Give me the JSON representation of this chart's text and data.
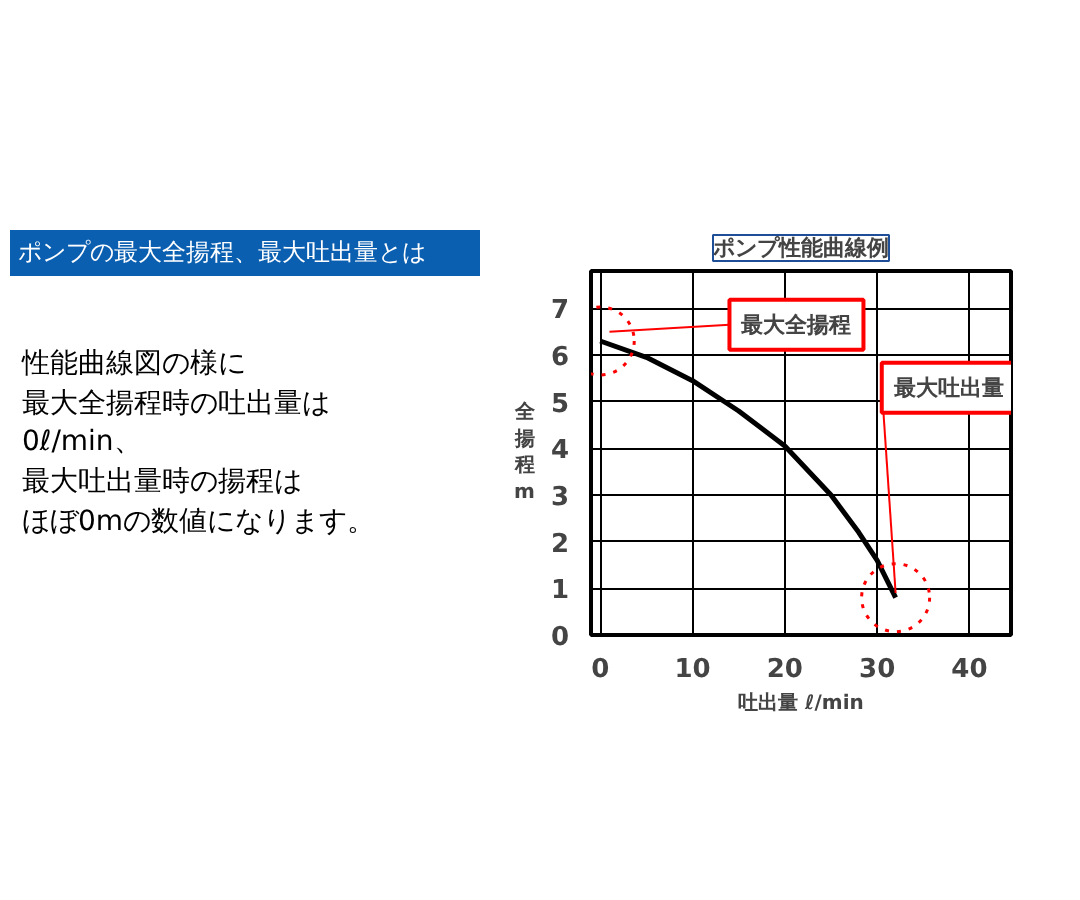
{
  "chart_data": {
    "type": "line",
    "title": "ポンプの最大全揚程、最大吐出量とは",
    "subtitle": "ポンプ性能曲線例",
    "xlabel": "吐出量 ℓ/min",
    "ylabel": "全揚程 m",
    "x": [
      0,
      5,
      10,
      15,
      20,
      25,
      28,
      30,
      32
    ],
    "series": [
      {
        "color": "#000000",
        "values": [
          6.3,
          5.95,
          5.45,
          4.8,
          4.05,
          3.0,
          2.2,
          1.6,
          0.8
        ]
      }
    ],
    "xlim": [
      -1,
      44.5
    ],
    "xticks": [
      0,
      10,
      20,
      30,
      40
    ],
    "ylim": [
      0,
      7.8
    ],
    "yticks": [
      0,
      1,
      2,
      3,
      4,
      5,
      6,
      7
    ],
    "grid": true,
    "annotations": [
      "性能曲線図の様に",
      "最大全揚程時の吐出量は",
      "0ℓ/min、",
      "最大吐出量時の揚程は",
      "ほぼ0mの数値になります。",
      {
        "text": "最大全揚程",
        "x": 0,
        "y": 6.3
      },
      {
        "text": "最大吐出量",
        "x": 32,
        "y": 0.8
      }
    ]
  }
}
